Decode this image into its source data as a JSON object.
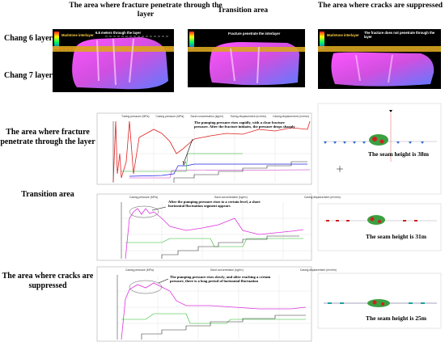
{
  "columns": [
    "The area where fracture penetrate through the layer",
    "Transition area",
    "The area where cracks are suppressed"
  ],
  "layers": [
    "Chang 6 layer",
    "Chang 7 layer"
  ],
  "images": [
    {
      "labels": [
        "Mudstone interlayer",
        "6.8 meters through the layer"
      ]
    },
    {
      "labels": [
        "Fracture penetrate the interlayer"
      ]
    },
    {
      "labels": [
        "Mudstone interlayer",
        "The fracture does not penetrate through the layer"
      ]
    }
  ],
  "rows": [
    {
      "label": "The area where fracture penetrate through the layer",
      "legend": [
        "Tubing pressure (MPa)",
        "Casing pressure (MPa)",
        "Sand concentration (kg/m³)",
        "Tubing displacement (m³/min)",
        "Casing displacement (m³/min)"
      ],
      "annotation": "The pumping pressure rises rapidly, with a clear fracture pressure. After the fracture initiates, the pressure drops sharply",
      "seam_height": "The seam height is 38m"
    },
    {
      "label": "Transition area",
      "legend": [
        "Casing pressure (MPa)",
        "Sand concentration (kg/m³)",
        "Casing displacement (m³/min)"
      ],
      "annotation": "After the pumping pressure rises to a certain level, a short horizontal fluctuation segment appears",
      "seam_height": "The seam height is 31m"
    },
    {
      "label": "The area where cracks are suppressed",
      "legend": [
        "Casing pressure (MPa)",
        "Sand concentration (kg/m³)",
        "Casing displacement (m³/min)"
      ],
      "annotation": "The pumping pressure rises slowly, and after reaching a certain pressure, there is a long period of horizontal fluctuation",
      "seam_height": "The seam height is 25m"
    }
  ]
}
